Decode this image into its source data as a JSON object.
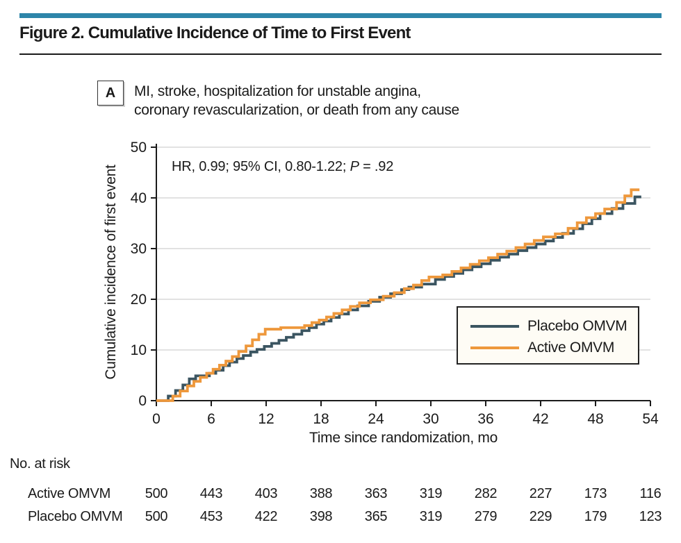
{
  "page": {
    "background": "#ffffff",
    "accent_color": "#2d85a9"
  },
  "header": {
    "title": "Figure 2. Cumulative Incidence of Time to First Event"
  },
  "panel": {
    "label": "A",
    "subtitle_line1": "MI, stroke, hospitalization for unstable angina,",
    "subtitle_line2": "coronary revascularization, or death from any cause"
  },
  "annotation": {
    "prefix": "HR, 0.99; 95% CI, 0.80-1.22; ",
    "p_label": "P",
    "p_value": " = .92"
  },
  "chart_data": {
    "type": "line",
    "subtype": "step",
    "title": "Cumulative Incidence of Time to First Event",
    "xlabel": "Time since randomization, mo",
    "ylabel": "Cumulative incidence of first event",
    "xlim": [
      0,
      54
    ],
    "ylim": [
      0,
      50
    ],
    "x_ticks": [
      0,
      6,
      12,
      18,
      24,
      30,
      36,
      42,
      48,
      54
    ],
    "y_ticks": [
      0,
      10,
      20,
      30,
      40,
      50
    ],
    "grid": "horizontal",
    "gridline_color": "#d8d8d8",
    "axis_color": "#1a1a1a",
    "legend_position": "inside lower right",
    "annotation_text": "HR, 0.99; 95% CI, 0.80-1.22; P = .92",
    "series": [
      {
        "name": "Placebo OMVM",
        "color": "#3b5561",
        "points": [
          [
            0,
            0
          ],
          [
            1.3,
            0.9
          ],
          [
            2.1,
            2.0
          ],
          [
            2.9,
            3.1
          ],
          [
            3.6,
            4.3
          ],
          [
            4.3,
            4.9
          ],
          [
            5.8,
            5.4
          ],
          [
            6.5,
            6.0
          ],
          [
            7.3,
            6.9
          ],
          [
            8.0,
            7.6
          ],
          [
            8.8,
            8.3
          ],
          [
            9.5,
            8.9
          ],
          [
            10.3,
            9.6
          ],
          [
            11.0,
            10.1
          ],
          [
            11.8,
            10.7
          ],
          [
            12.6,
            11.3
          ],
          [
            13.4,
            11.9
          ],
          [
            14.2,
            12.5
          ],
          [
            15.0,
            13.1
          ],
          [
            15.9,
            13.8
          ],
          [
            16.7,
            14.4
          ],
          [
            17.5,
            15.1
          ],
          [
            18.3,
            15.7
          ],
          [
            19.1,
            16.4
          ],
          [
            20.0,
            17.1
          ],
          [
            21.0,
            17.9
          ],
          [
            22.0,
            18.7
          ],
          [
            23.2,
            19.6
          ],
          [
            24.4,
            20.4
          ],
          [
            25.6,
            21.1
          ],
          [
            26.8,
            21.9
          ],
          [
            27.6,
            22.4
          ],
          [
            29.0,
            23.0
          ],
          [
            30.5,
            23.9
          ],
          [
            31.5,
            24.5
          ],
          [
            32.5,
            25.1
          ],
          [
            33.5,
            25.8
          ],
          [
            34.5,
            26.4
          ],
          [
            35.5,
            27.0
          ],
          [
            36.5,
            27.7
          ],
          [
            37.5,
            28.3
          ],
          [
            38.5,
            28.9
          ],
          [
            39.5,
            29.6
          ],
          [
            40.5,
            30.2
          ],
          [
            41.5,
            30.9
          ],
          [
            42.5,
            31.5
          ],
          [
            43.4,
            32.2
          ],
          [
            44.4,
            33.0
          ],
          [
            45.6,
            33.9
          ],
          [
            46.6,
            34.9
          ],
          [
            47.6,
            35.9
          ],
          [
            48.5,
            36.9
          ],
          [
            49.8,
            37.9
          ],
          [
            51.0,
            38.9
          ],
          [
            52.3,
            40.2
          ],
          [
            53.0,
            40.2
          ]
        ]
      },
      {
        "name": "Active OMVM",
        "color": "#ee983c",
        "points": [
          [
            0,
            0
          ],
          [
            1.8,
            0.9
          ],
          [
            2.6,
            1.9
          ],
          [
            3.4,
            2.9
          ],
          [
            4.1,
            3.8
          ],
          [
            4.8,
            4.6
          ],
          [
            5.5,
            5.4
          ],
          [
            6.2,
            6.2
          ],
          [
            6.9,
            7.0
          ],
          [
            7.6,
            7.8
          ],
          [
            8.3,
            8.7
          ],
          [
            9.0,
            9.7
          ],
          [
            9.8,
            10.8
          ],
          [
            10.5,
            12.0
          ],
          [
            11.2,
            13.1
          ],
          [
            11.9,
            14.1
          ],
          [
            13.6,
            14.4
          ],
          [
            16.2,
            14.8
          ],
          [
            17.0,
            15.4
          ],
          [
            17.8,
            15.9
          ],
          [
            18.6,
            16.5
          ],
          [
            19.4,
            17.2
          ],
          [
            20.3,
            17.9
          ],
          [
            21.2,
            18.6
          ],
          [
            22.2,
            19.3
          ],
          [
            23.4,
            19.9
          ],
          [
            24.8,
            20.6
          ],
          [
            26.0,
            21.3
          ],
          [
            27.1,
            22.1
          ],
          [
            28.1,
            22.8
          ],
          [
            29.0,
            23.7
          ],
          [
            29.8,
            24.4
          ],
          [
            31.3,
            24.8
          ],
          [
            32.3,
            25.5
          ],
          [
            33.3,
            26.2
          ],
          [
            34.3,
            26.9
          ],
          [
            35.3,
            27.6
          ],
          [
            36.3,
            28.2
          ],
          [
            37.3,
            28.9
          ],
          [
            38.3,
            29.5
          ],
          [
            39.3,
            30.2
          ],
          [
            40.3,
            30.9
          ],
          [
            41.3,
            31.6
          ],
          [
            42.3,
            32.3
          ],
          [
            43.6,
            32.9
          ],
          [
            45.0,
            34.0
          ],
          [
            46.0,
            35.1
          ],
          [
            47.0,
            36.1
          ],
          [
            48.0,
            36.9
          ],
          [
            49.0,
            37.8
          ],
          [
            50.3,
            39.1
          ],
          [
            51.2,
            40.4
          ],
          [
            51.9,
            41.6
          ],
          [
            52.8,
            41.6
          ]
        ]
      }
    ]
  },
  "legend": {
    "items": [
      {
        "label": "Placebo OMVM",
        "color": "#3b5561"
      },
      {
        "label": "Active OMVM",
        "color": "#ee983c"
      }
    ]
  },
  "risk_table": {
    "heading": "No. at risk",
    "rows": [
      {
        "label": "Active OMVM",
        "counts": [
          "500",
          "443",
          "403",
          "388",
          "363",
          "319",
          "282",
          "227",
          "173",
          "116"
        ]
      },
      {
        "label": "Placebo OMVM",
        "counts": [
          "500",
          "453",
          "422",
          "398",
          "365",
          "319",
          "279",
          "229",
          "179",
          "123"
        ]
      }
    ]
  }
}
